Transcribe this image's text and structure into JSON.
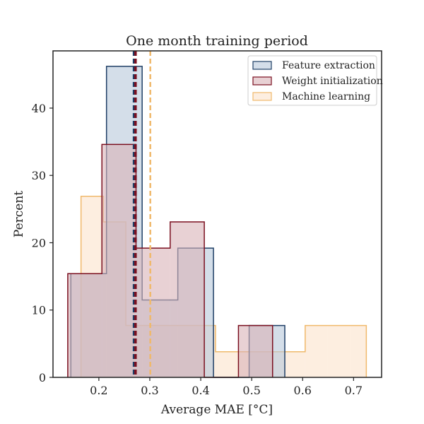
{
  "chart_data": {
    "type": "histogram",
    "title": "One month training period",
    "xlabel": "Average MAE [°C]",
    "ylabel": "Percent",
    "xlim": [
      0.11,
      0.755
    ],
    "ylim": [
      0,
      48.5
    ],
    "xticks": [
      0.2,
      0.3,
      0.4,
      0.5,
      0.6,
      0.7
    ],
    "xtick_labels": [
      "0.2",
      "0.3",
      "0.4",
      "0.5",
      "0.6",
      "0.7"
    ],
    "yticks": [
      0,
      10,
      20,
      30,
      40
    ],
    "ytick_labels": [
      "0",
      "10",
      "20",
      "30",
      "40"
    ],
    "grid": false,
    "legend_position": "top-right",
    "series": [
      {
        "name": "Machine learning",
        "color": "#f0b96b",
        "fill": "#fbe3cc",
        "bin_edges": [
          0.165,
          0.209,
          0.253,
          0.297,
          0.341,
          0.385,
          0.429,
          0.473,
          0.517,
          0.561,
          0.605,
          0.649,
          0.693,
          0.725
        ],
        "values": [
          26.9,
          23.1,
          7.7,
          7.7,
          7.7,
          7.7,
          3.8,
          3.8,
          3.8,
          3.8,
          7.7,
          7.7,
          7.7
        ],
        "mean_line": 0.301
      },
      {
        "name": "Feature extraction",
        "color": "#1f3f66",
        "fill": "#b8c8da",
        "bin_edges": [
          0.145,
          0.215,
          0.285,
          0.355,
          0.425,
          0.495,
          0.565
        ],
        "values": [
          15.4,
          46.2,
          11.5,
          19.2,
          0,
          7.7
        ],
        "mean_line": 0.269
      },
      {
        "name": "Weight initialization",
        "color": "#7a0f1f",
        "fill": "#d9b3b8",
        "bin_edges": [
          0.139,
          0.206,
          0.273,
          0.34,
          0.407,
          0.474,
          0.541
        ],
        "values": [
          15.4,
          34.6,
          19.2,
          23.1,
          0,
          7.7
        ],
        "mean_line": 0.272
      }
    ],
    "legend_order": [
      "Feature extraction",
      "Weight initialization",
      "Machine learning"
    ]
  }
}
